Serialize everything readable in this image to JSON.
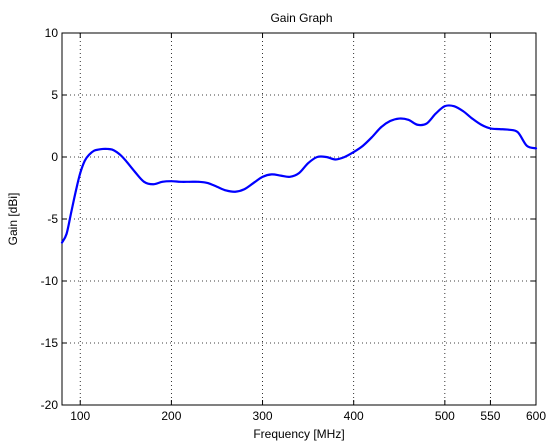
{
  "chart_data": {
    "type": "line",
    "title": "Gain Graph",
    "xlabel": "Frequency [MHz]",
    "ylabel": "Gain [dBi]",
    "xlim": [
      80,
      600
    ],
    "ylim": [
      -20,
      10
    ],
    "xticks": [
      100,
      200,
      300,
      400,
      500,
      550,
      600
    ],
    "yticks": [
      -20,
      -15,
      -10,
      -5,
      0,
      5,
      10
    ],
    "grid": true,
    "series": [
      {
        "color": "#0000ff",
        "x": [
          80,
          85,
          90,
          95,
          100,
          105,
          110,
          115,
          120,
          125,
          130,
          135,
          140,
          145,
          150,
          160,
          170,
          180,
          190,
          200,
          210,
          220,
          230,
          240,
          250,
          260,
          270,
          280,
          290,
          300,
          310,
          320,
          330,
          340,
          350,
          360,
          370,
          380,
          390,
          400,
          410,
          420,
          430,
          440,
          450,
          460,
          470,
          480,
          490,
          500,
          510,
          520,
          530,
          540,
          550,
          560,
          570,
          580,
          590,
          600
        ],
        "y": [
          -6.9,
          -6.2,
          -4.5,
          -2.8,
          -1.3,
          -0.3,
          0.2,
          0.5,
          0.6,
          0.65,
          0.65,
          0.6,
          0.4,
          0.1,
          -0.3,
          -1.2,
          -2.0,
          -2.2,
          -2.0,
          -1.95,
          -2.0,
          -2.0,
          -2.0,
          -2.1,
          -2.4,
          -2.7,
          -2.8,
          -2.6,
          -2.1,
          -1.6,
          -1.4,
          -1.5,
          -1.6,
          -1.3,
          -0.5,
          0.0,
          0.0,
          -0.2,
          0.0,
          0.4,
          0.9,
          1.6,
          2.4,
          2.9,
          3.1,
          3.0,
          2.6,
          2.7,
          3.5,
          4.1,
          4.1,
          3.7,
          3.1,
          2.6,
          2.3,
          2.25,
          2.2,
          2.0,
          0.9,
          0.7
        ]
      }
    ]
  }
}
